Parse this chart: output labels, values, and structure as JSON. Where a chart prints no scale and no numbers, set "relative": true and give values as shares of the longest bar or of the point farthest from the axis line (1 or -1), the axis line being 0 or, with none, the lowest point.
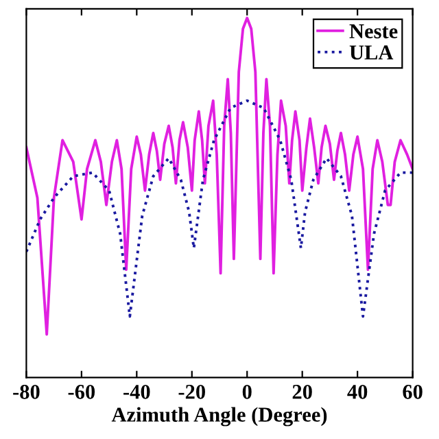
{
  "chart_data": {
    "type": "line",
    "xlabel": "Azimuth Angle (Degree)",
    "relative": true,
    "xlim": [
      -80,
      60
    ],
    "xticks": [
      -80,
      -60,
      -40,
      -20,
      0,
      20,
      40,
      60
    ],
    "legend": "top right",
    "grid": false,
    "series": [
      {
        "name": "Neste",
        "color": "#e020e0",
        "line_style": "solid",
        "x": [
          -80,
          -76,
          -72.6,
          -70,
          -66.9,
          -63,
          -60,
          -58,
          -55,
          -53,
          -51,
          -49,
          -47.2,
          -45.5,
          -43.8,
          -42,
          -40,
          -38.5,
          -37,
          -35.5,
          -34,
          -32.7,
          -31.5,
          -30,
          -28.4,
          -27,
          -25.8,
          -24.5,
          -23.2,
          -21.5,
          -20,
          -19,
          -17.5,
          -16.3,
          -15.3,
          -14,
          -12.3,
          -11,
          -9.6,
          -8.3,
          -7,
          -5.9,
          -4.8,
          -3,
          -1.5,
          0,
          1.5,
          3,
          4.8,
          5.9,
          7,
          8.3,
          9.6,
          11,
          12.3,
          14,
          15.3,
          16.3,
          17.5,
          19,
          20,
          21.5,
          22.8,
          24.3,
          25.8,
          27,
          28.4,
          30,
          31.5,
          32.7,
          34,
          35.5,
          37,
          38.5,
          40,
          42,
          43.8,
          45.5,
          47.2,
          49,
          51,
          52,
          53.5,
          55.6,
          58,
          60
        ],
        "values": [
          0.64,
          0.5,
          0.12,
          0.5,
          0.66,
          0.6,
          0.44,
          0.58,
          0.66,
          0.6,
          0.48,
          0.6,
          0.66,
          0.58,
          0.3,
          0.58,
          0.67,
          0.62,
          0.52,
          0.62,
          0.68,
          0.63,
          0.55,
          0.65,
          0.7,
          0.64,
          0.54,
          0.66,
          0.71,
          0.64,
          0.52,
          0.66,
          0.74,
          0.66,
          0.54,
          0.7,
          0.77,
          0.62,
          0.29,
          0.7,
          0.83,
          0.68,
          0.33,
          0.85,
          0.97,
          1.0,
          0.97,
          0.85,
          0.33,
          0.68,
          0.83,
          0.7,
          0.29,
          0.62,
          0.77,
          0.7,
          0.54,
          0.66,
          0.74,
          0.66,
          0.52,
          0.64,
          0.72,
          0.64,
          0.54,
          0.64,
          0.7,
          0.65,
          0.55,
          0.63,
          0.68,
          0.62,
          0.52,
          0.62,
          0.67,
          0.58,
          0.3,
          0.58,
          0.66,
          0.6,
          0.48,
          0.48,
          0.6,
          0.66,
          0.62,
          0.58
        ]
      },
      {
        "name": "ULA",
        "color": "#1a1aa0",
        "line_style": "dotted",
        "x": [
          -80,
          -75,
          -70,
          -63,
          -56,
          -50,
          -46,
          -42.5,
          -38,
          -34,
          -28.4,
          -24,
          -21,
          -19.3,
          -16,
          -12,
          -6,
          0,
          6,
          12,
          16,
          19.5,
          21,
          24,
          28.8,
          34,
          38,
          42,
          46,
          50,
          55.6,
          60
        ],
        "values": [
          0.35,
          0.44,
          0.5,
          0.56,
          0.57,
          0.52,
          0.4,
          0.17,
          0.45,
          0.56,
          0.61,
          0.55,
          0.46,
          0.36,
          0.55,
          0.66,
          0.75,
          0.77,
          0.75,
          0.66,
          0.55,
          0.36,
          0.46,
          0.55,
          0.61,
          0.56,
          0.45,
          0.17,
          0.4,
          0.52,
          0.57,
          0.57
        ]
      }
    ]
  }
}
